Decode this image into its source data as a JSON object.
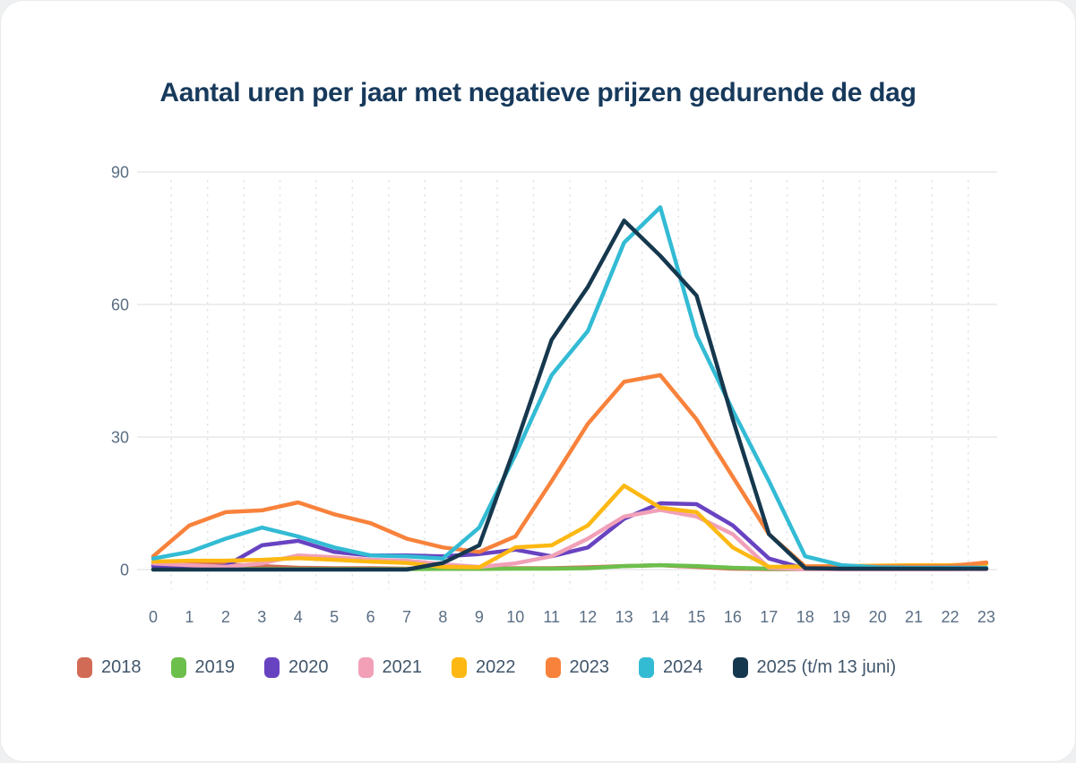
{
  "title": "Aantal uren per jaar met negatieve prijzen gedurende de dag",
  "colors": {
    "title_text": "#173a5c",
    "axis_label": "#5a6e84",
    "grid_solid": "#e9e9e9",
    "grid_dashed": "#e0e4e8",
    "card_background": "#ffffff"
  },
  "chart_data": {
    "type": "line",
    "title": "Aantal uren per jaar met negatieve prijzen gedurende de dag",
    "xlabel": "",
    "ylabel": "",
    "ylim": [
      0,
      90
    ],
    "yticks": [
      0,
      30,
      60,
      90
    ],
    "grid": "horizontal solid, vertical dashed between categories",
    "legend_position": "bottom",
    "x": [
      "0",
      "1",
      "2",
      "3",
      "4",
      "5",
      "6",
      "7",
      "8",
      "9",
      "10",
      "11",
      "12",
      "13",
      "14",
      "15",
      "16",
      "17",
      "18",
      "19",
      "20",
      "21",
      "22",
      "23"
    ],
    "series": [
      {
        "name": "2018",
        "color": "#d26b56",
        "values": [
          1.2,
          1.5,
          1.2,
          0.8,
          0.4,
          0.3,
          0.3,
          0.2,
          0.2,
          0.2,
          0.3,
          0.3,
          0.5,
          0.8,
          1.0,
          0.6,
          0.2,
          0.1,
          0.1,
          0.1,
          0.1,
          0.1,
          0.1,
          0.2
        ]
      },
      {
        "name": "2019",
        "color": "#6cbf4b",
        "values": [
          0.1,
          0.1,
          0.1,
          0.1,
          0.1,
          0.1,
          0.1,
          0.1,
          0.15,
          0.15,
          0.2,
          0.2,
          0.3,
          0.8,
          1.0,
          0.8,
          0.4,
          0.2,
          0.15,
          0.15,
          0.15,
          0.15,
          0.15,
          0.15
        ]
      },
      {
        "name": "2020",
        "color": "#6843c1",
        "values": [
          0.8,
          0.5,
          0.8,
          5.5,
          6.5,
          4.0,
          3.2,
          3.2,
          3.0,
          3.5,
          4.5,
          3.0,
          5.0,
          11.5,
          15.0,
          14.8,
          10.0,
          2.5,
          0.2,
          0.1,
          0.1,
          0.1,
          0.1,
          0.1
        ]
      },
      {
        "name": "2021",
        "color": "#f1a0b8",
        "values": [
          1.4,
          1.0,
          0.6,
          1.4,
          3.2,
          2.8,
          2.2,
          2.0,
          1.2,
          0.6,
          1.4,
          3.0,
          7.0,
          12.0,
          13.5,
          12.0,
          8.0,
          0.4,
          0.1,
          0.1,
          0.1,
          0.1,
          0.1,
          0.1
        ]
      },
      {
        "name": "2022",
        "color": "#fdb813",
        "values": [
          1.8,
          2.0,
          2.0,
          2.2,
          2.6,
          2.2,
          1.8,
          1.5,
          0.6,
          0.5,
          5.0,
          5.5,
          10.0,
          19.0,
          14.0,
          13.0,
          5.0,
          0.6,
          0.7,
          0.8,
          0.9,
          1.0,
          1.0,
          1.3
        ]
      },
      {
        "name": "2023",
        "color": "#f8823b",
        "values": [
          3.0,
          10.0,
          13.0,
          13.4,
          15.2,
          12.5,
          10.5,
          7.0,
          5.0,
          4.0,
          7.5,
          20.0,
          33.0,
          42.5,
          44.0,
          34.0,
          21.0,
          8.0,
          0.7,
          0.7,
          0.7,
          0.7,
          0.8,
          1.6
        ]
      },
      {
        "name": "2024",
        "color": "#33bbd4",
        "values": [
          2.5,
          4.0,
          7.0,
          9.5,
          7.5,
          5.0,
          3.2,
          3.0,
          2.5,
          9.5,
          26.0,
          44.0,
          54.0,
          74.0,
          82.0,
          53.0,
          36.0,
          20.0,
          3.0,
          1.0,
          0.5,
          0.4,
          0.4,
          0.4
        ]
      },
      {
        "name": "2025 (t/m 13 juni)",
        "color": "#16384e",
        "values": [
          0,
          0,
          0,
          0,
          0,
          0,
          0,
          0,
          1.5,
          5.5,
          28.0,
          52.0,
          64.0,
          79.0,
          71.0,
          62.0,
          34.0,
          8.0,
          0.3,
          0.2,
          0.2,
          0.2,
          0.2,
          0.2
        ]
      }
    ]
  }
}
